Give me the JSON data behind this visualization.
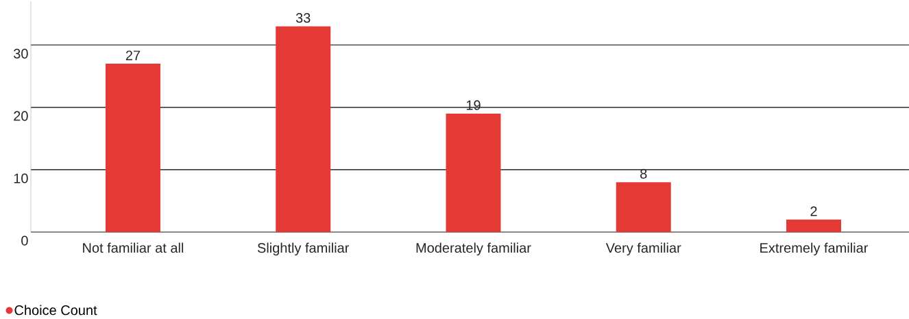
{
  "chart_data": {
    "type": "bar",
    "categories": [
      "Not familiar at all",
      "Slightly familiar",
      "Moderately familiar",
      "Very familiar",
      "Extremely familiar"
    ],
    "series": [
      {
        "name": "Choice Count",
        "color": "#e53935",
        "values": [
          27,
          33,
          19,
          8,
          2
        ]
      }
    ],
    "ylim": [
      0,
      37
    ],
    "yticks": [
      0,
      10,
      20,
      30
    ],
    "grid": "y",
    "legend": "bottom left",
    "data_labels": true
  }
}
